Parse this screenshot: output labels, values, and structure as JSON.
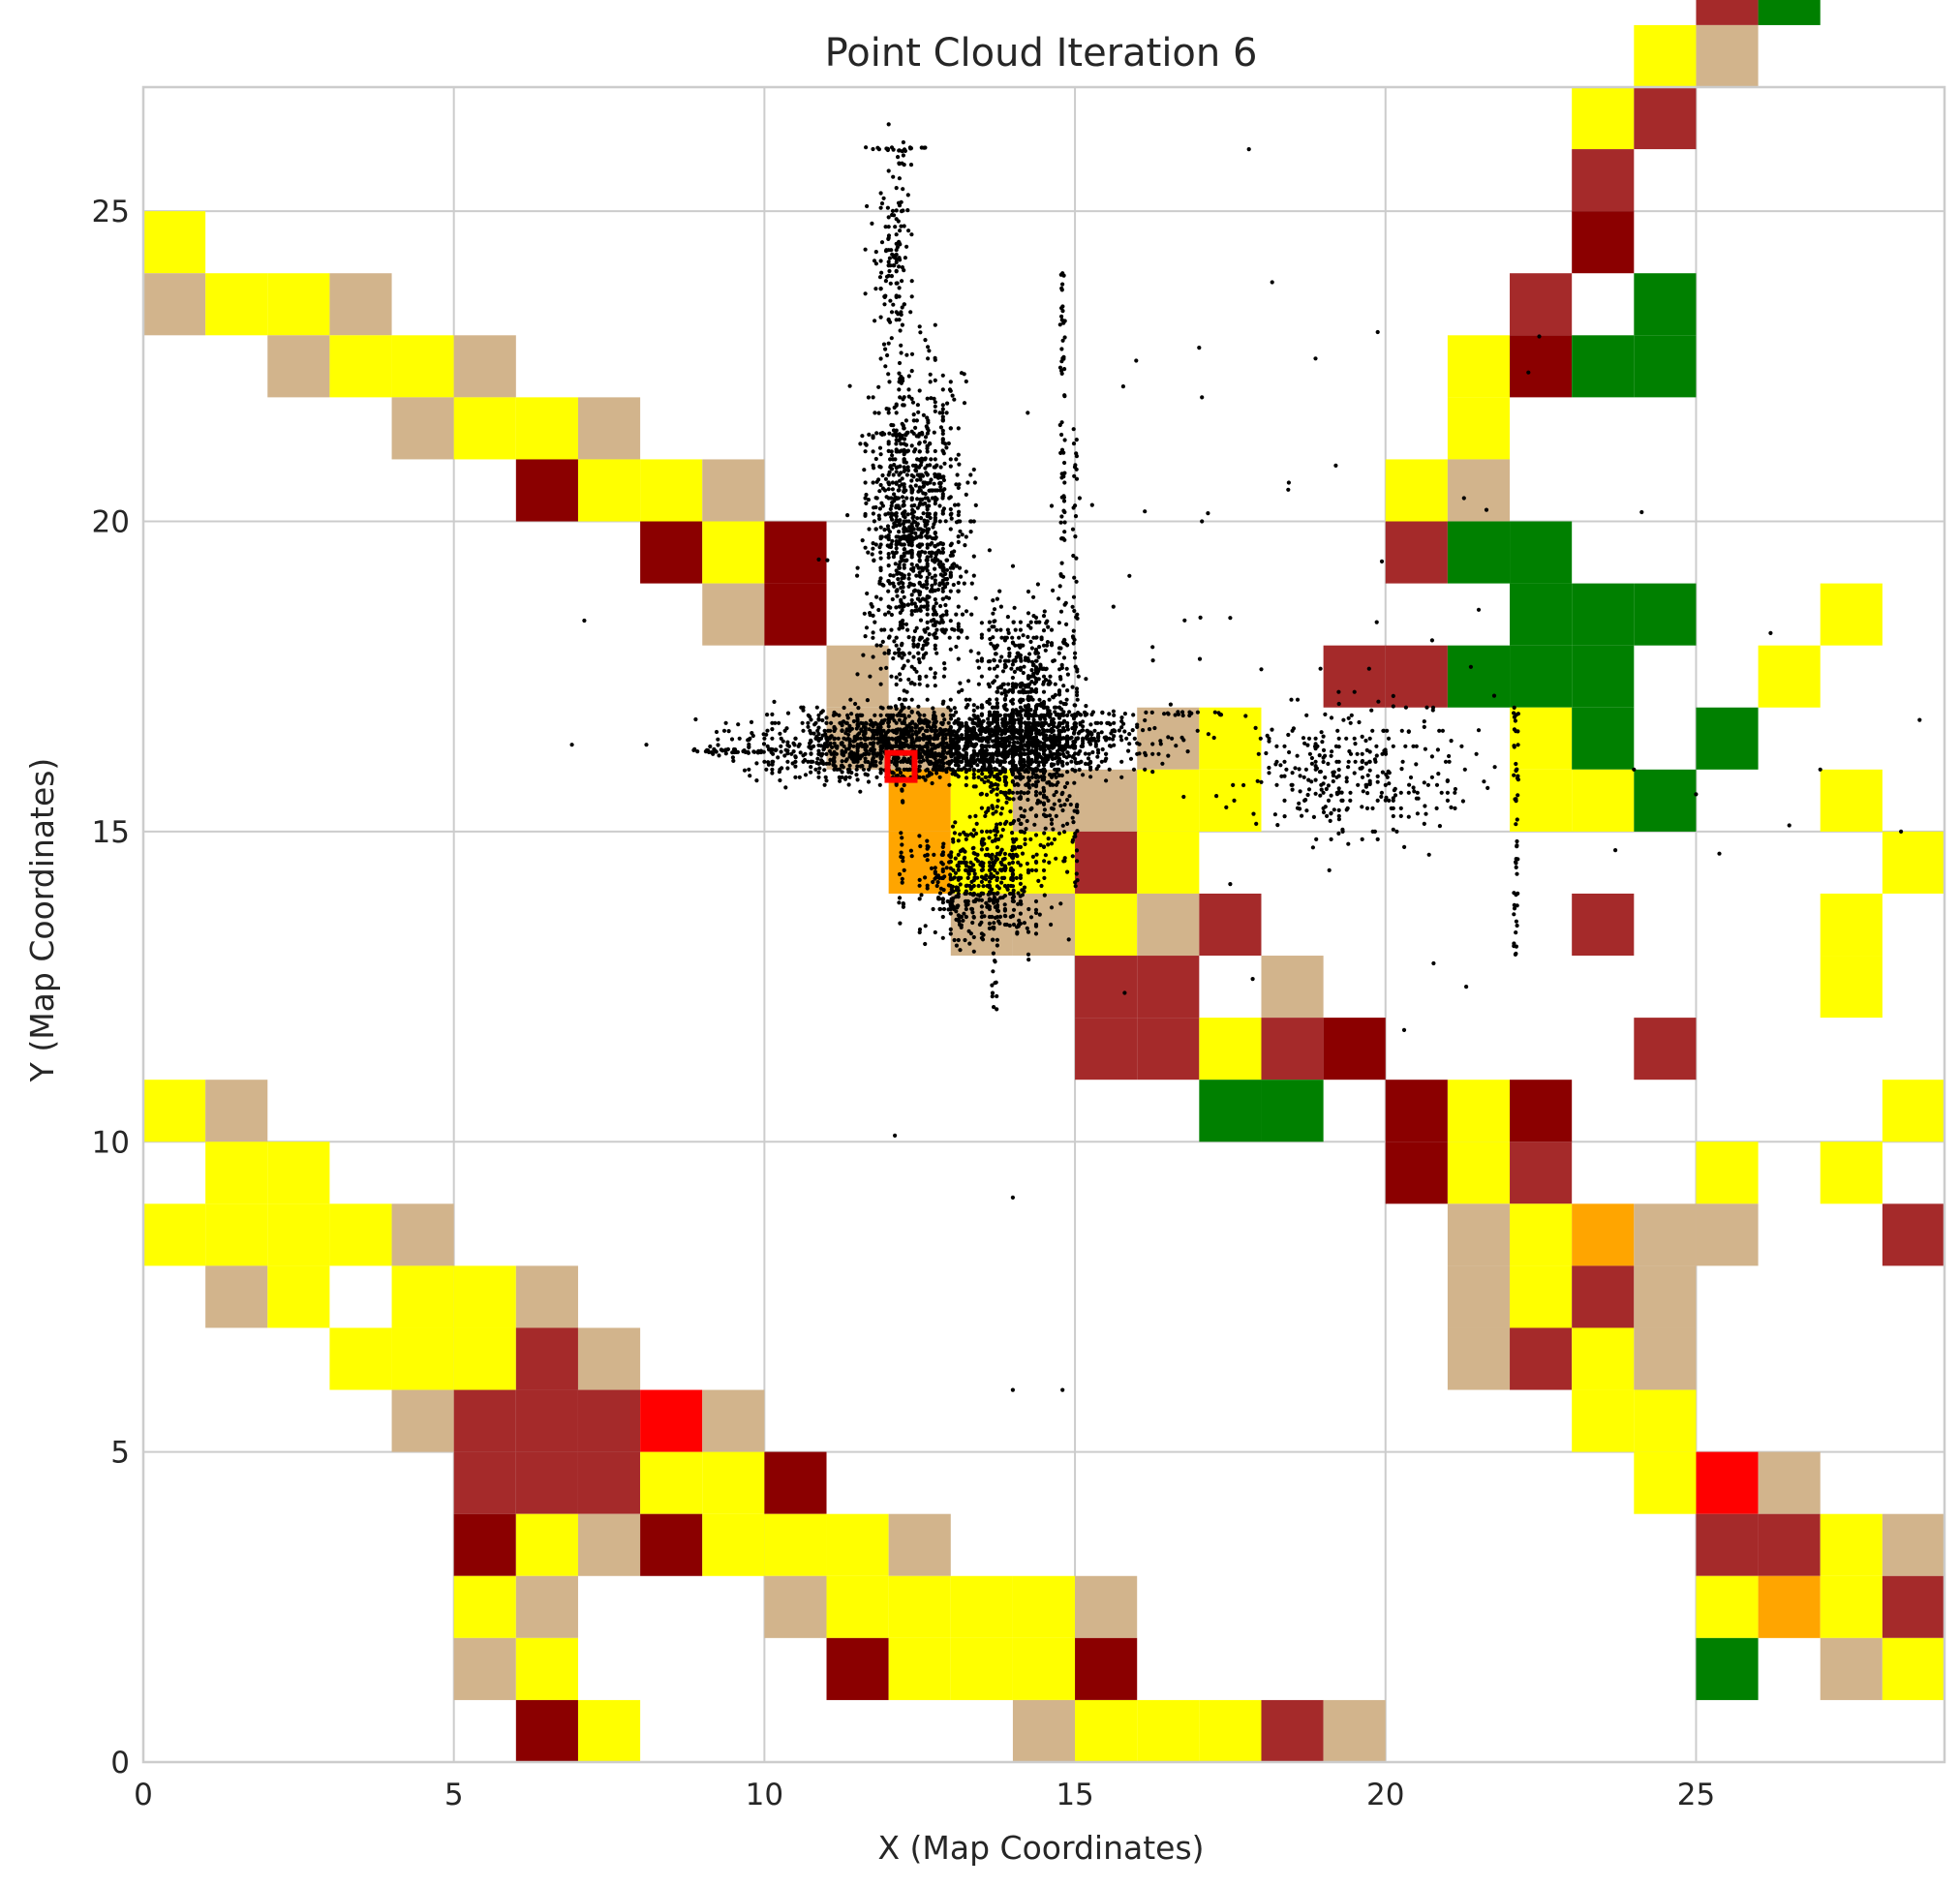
{
  "chart_data": {
    "type": "heatmap",
    "title": "Point Cloud Iteration 6",
    "xlabel": "X (Map Coordinates)",
    "ylabel": "Y (Map Coordinates)",
    "xlim": [
      0,
      29
    ],
    "ylim": [
      0,
      27
    ],
    "x_ticks": [
      0,
      5,
      10,
      15,
      20,
      25
    ],
    "y_ticks": [
      0,
      5,
      10,
      15,
      20,
      25
    ],
    "grid": true,
    "cell_colors": {
      "Y": "#ffff00",
      "T": "#d2b48c",
      "B": "#a52a2a",
      "D": "#8b0000",
      "G": "#008000",
      "O": "#ffa500",
      "R": "#ff0000"
    },
    "grid_rows_top_to_bottom": [
      ".........................BG..",
      "........................YT...",
      ".......................YB....",
      ".......................B.....",
      "Y......................D.....",
      "TYYT..................B.G....",
      "..TYYT...............YDGG....",
      "....TYYT.............Y........",
      "......DYYT..........YT.......",
      "........DYD.........BGG......",
      ".........TD...........GGG..Y.",
      "...........T.......BBGGG..Y..",
      "...........TT...TY....YG.G...",
      "............OYTTYY....YYG..Y.",
      "............OYYBY...........Y.",
      ".............TTYTB.....B...Y..",
      "...............BB.T........Y.",
      "...............BBYBD....B....",
      "YT...............GG.DYD.....Y",
      ".YY.................DYB..Y.Y..",
      "YYYYT................TYOTT..B.",
      ".TY.YYT..............TYBT....Y",
      "...YYYBT.............TBYT.....",
      "....TBBBRT.............YY.....",
      ".....BBBYYD.............YRT...",
      ".....DYTDYYYT............BBYT",
      ".....YT...TYYYYT.........YOYB",
      ".....TY....DYYYD.........G.TY",
      "......DY......TYYYBT.........T"
    ],
    "robot_marker": {
      "x": 12.2,
      "y": 16.05,
      "color": "#ff0000"
    },
    "points": {
      "color": "#000000",
      "clusters": [
        {
          "x_range": [
            8.7,
            17.2
          ],
          "y_range": [
            15.6,
            17.2
          ],
          "count": 2200
        },
        {
          "x_range": [
            11.3,
            13.6
          ],
          "y_range": [
            16.0,
            23.5
          ],
          "count": 1100
        },
        {
          "x_range": [
            13.2,
            15.2
          ],
          "y_range": [
            14.0,
            19.5
          ],
          "count": 800
        },
        {
          "x_range": [
            12.0,
            15.0
          ],
          "y_range": [
            12.8,
            15.5
          ],
          "count": 500
        },
        {
          "x_range": [
            11.5,
            12.6
          ],
          "y_range": [
            22.0,
            26.2
          ],
          "count": 120
        },
        {
          "x_range": [
            17.0,
            22.0
          ],
          "y_range": [
            14.5,
            17.5
          ],
          "count": 300
        },
        {
          "x_range": [
            8.0,
            27.0
          ],
          "y_range": [
            10.0,
            27.0
          ],
          "count": 80
        }
      ],
      "streaks": [
        {
          "x": 12.2,
          "y_range": [
            13.5,
            26.2
          ],
          "count": 90
        },
        {
          "x": 14.8,
          "y_range": [
            14.5,
            24.0
          ],
          "count": 90
        },
        {
          "x": 15.0,
          "y_range": [
            14.0,
            21.5
          ],
          "count": 70
        },
        {
          "x": 13.7,
          "y_range": [
            12.0,
            18.8
          ],
          "count": 60
        },
        {
          "x": 22.1,
          "y_range": [
            13.0,
            17.0
          ],
          "count": 50
        },
        {
          "y": 26.0,
          "x_range": [
            11.6,
            12.6
          ],
          "count": 20
        },
        {
          "y": 21.4,
          "x_range": [
            11.5,
            12.6
          ],
          "count": 20
        },
        {
          "y": 16.3,
          "x_range": [
            8.8,
            10.2
          ],
          "count": 40
        },
        {
          "y": 16.9,
          "x_range": [
            14.5,
            17.5
          ],
          "count": 40
        }
      ],
      "isolated": [
        [
          17.8,
          26.0
        ],
        [
          12.0,
          26.4
        ],
        [
          14.8,
          24.0
        ],
        [
          22.3,
          22.4
        ],
        [
          17.0,
          22.8
        ],
        [
          19.2,
          20.9
        ],
        [
          26.2,
          18.2
        ],
        [
          28.6,
          16.8
        ],
        [
          27.0,
          16.0
        ],
        [
          28.3,
          15.0
        ],
        [
          24.0,
          16.0
        ],
        [
          25.0,
          15.6
        ],
        [
          26.5,
          15.1
        ],
        [
          12.1,
          10.1
        ],
        [
          14.0,
          9.1
        ],
        [
          14.0,
          6.0
        ],
        [
          14.8,
          6.0
        ],
        [
          20.3,
          11.8
        ],
        [
          21.3,
          12.5
        ],
        [
          15.8,
          12.4
        ],
        [
          8.1,
          16.4
        ],
        [
          23.7,
          14.7
        ],
        [
          6.9,
          16.4
        ],
        [
          7.1,
          18.4
        ],
        [
          19.4,
          14.8
        ]
      ]
    }
  }
}
